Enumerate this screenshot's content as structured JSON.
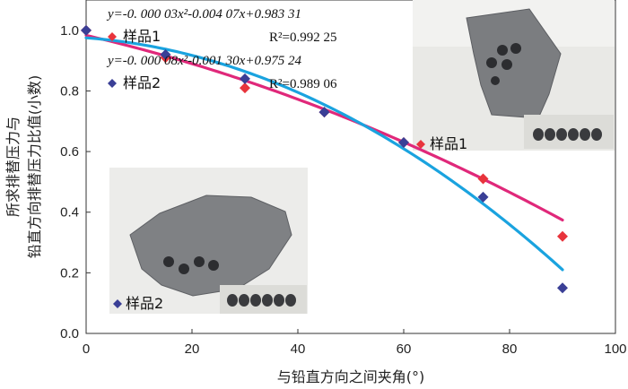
{
  "chart_data": {
    "type": "scatter",
    "xlabel": "与铅直方向之间夹角(°)",
    "ylabel": [
      "所求排替压力与",
      "铅直方向排替压力比值(小数)"
    ],
    "xlim": [
      0,
      100
    ],
    "ylim": [
      0,
      1.1
    ],
    "xticks": [
      "0",
      "20",
      "40",
      "60",
      "80",
      "100"
    ],
    "yticks": [
      "0.0",
      "0.2",
      "0.4",
      "0.6",
      "0.8",
      "1.0"
    ],
    "series": [
      {
        "name": "样品1",
        "color": "#e8343c",
        "fit_color": "#e0287a",
        "marker": "diamond",
        "x": [
          0,
          15,
          30,
          45,
          60,
          75,
          90
        ],
        "y": [
          1.0,
          0.91,
          0.81,
          0.73,
          0.63,
          0.51,
          0.32
        ],
        "fit": {
          "a": -3e-05,
          "b": -0.00407,
          "c": 0.98331
        },
        "equation": "y=-0. 000 03x²-0.004 07x+0.983 31",
        "r2": "R²=0.992 25"
      },
      {
        "name": "样品2",
        "color": "#3a3f96",
        "fit_color": "#1aa3df",
        "marker": "diamond",
        "x": [
          0,
          15,
          30,
          45,
          60,
          75,
          90
        ],
        "y": [
          1.0,
          0.92,
          0.84,
          0.73,
          0.63,
          0.45,
          0.15
        ],
        "fit": {
          "a": -8e-05,
          "b": -0.0013,
          "c": 0.97524
        },
        "equation": "y=-0. 000 08x²-0.001 30x+0.975 24",
        "r2": "R²=0.989 06"
      }
    ],
    "photo_labels": [
      "样品1",
      "样品2"
    ]
  }
}
